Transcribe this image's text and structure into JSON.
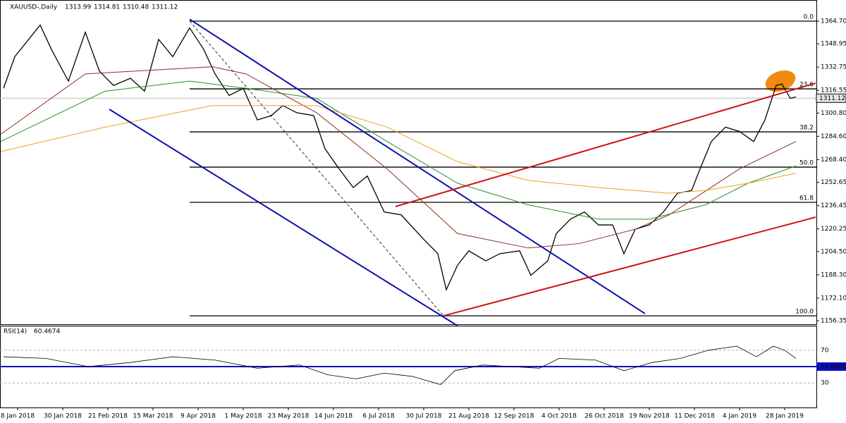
{
  "chart_data": {
    "type": "line",
    "title": "XAUUSD-,Daily",
    "ohlc": [
      1313.99,
      1314.81,
      1310.48,
      1311.12
    ],
    "x": [
      -5,
      -1,
      8,
      12,
      18,
      24,
      29,
      34,
      40,
      45,
      50,
      55,
      61,
      66,
      70,
      75,
      80,
      85,
      90,
      94,
      99,
      105,
      109,
      114,
      119,
      124,
      130,
      136,
      144,
      149,
      152,
      156,
      160,
      166,
      171,
      178,
      182,
      188,
      191,
      196,
      201,
      206,
      211,
      215,
      219,
      224,
      229,
      234,
      239,
      242,
      246,
      251,
      256,
      261,
      265,
      269,
      271,
      274,
      276
    ],
    "series": [
      {
        "color": "#000000",
        "values": [
          1318,
          1340,
          1362,
          1345,
          1323,
          1357,
          1330,
          1320,
          1325,
          1316,
          1352,
          1340,
          1360,
          1345,
          1328,
          1313,
          1318,
          1296,
          1299,
          1306,
          1301,
          1299,
          1276,
          1262,
          1249,
          1257,
          1232,
          1230,
          1213,
          1203,
          1178,
          1195,
          1205,
          1198,
          1203,
          1205,
          1188,
          1198,
          1217,
          1227,
          1232,
          1223,
          1223,
          1203,
          1220,
          1223,
          1232,
          1245,
          1247,
          1262,
          1281,
          1291,
          1288,
          1281,
          1296,
          1320,
          1321,
          1311,
          1312
        ]
      },
      {
        "color": "#8b2e1e",
        "x": [
          -6,
          24,
          69,
          81,
          106,
          131,
          156,
          181,
          199,
          219,
          231,
          256,
          276
        ],
        "values": [
          1286,
          1328,
          1333,
          1328,
          1301,
          1262,
          1217,
          1207,
          1210,
          1220,
          1230,
          1262,
          1281
        ]
      },
      {
        "color": "#2e8b2e",
        "x": [
          -6,
          31,
          61,
          81,
          106,
          131,
          156,
          181,
          206,
          224,
          244,
          259,
          276
        ],
        "values": [
          1281,
          1316,
          1323,
          1318,
          1311,
          1281,
          1252,
          1237,
          1227,
          1227,
          1237,
          1252,
          1264
        ]
      },
      {
        "color": "#f0a020",
        "x": [
          -6,
          31,
          69,
          106,
          131,
          156,
          181,
          206,
          231,
          244,
          259,
          276
        ],
        "values": [
          1274,
          1291,
          1306,
          1306,
          1291,
          1267,
          1254,
          1249,
          1245,
          1247,
          1252,
          1259
        ]
      }
    ],
    "xlim": [
      -6.25,
      283.25
    ],
    "xticks": [
      {
        "value": 0,
        "label": "8 Jan 2018"
      },
      {
        "value": 16,
        "label": "30 Jan 2018"
      },
      {
        "value": 32,
        "label": "21 Feb 2018"
      },
      {
        "value": 48,
        "label": "15 Mar 2018"
      },
      {
        "value": 64,
        "label": "9 Apr 2018"
      },
      {
        "value": 80,
        "label": "1 May 2018"
      },
      {
        "value": 96,
        "label": "23 May 2018"
      },
      {
        "value": 112,
        "label": "14 Jun 2018"
      },
      {
        "value": 128,
        "label": "6 Jul 2018"
      },
      {
        "value": 144,
        "label": "30 Jul 2018"
      },
      {
        "value": 160,
        "label": "21 Aug 2018"
      },
      {
        "value": 176,
        "label": "12 Sep 2018"
      },
      {
        "value": 192,
        "label": "4 Oct 2018"
      },
      {
        "value": 208,
        "label": "26 Oct 2018"
      },
      {
        "value": 224,
        "label": "19 Nov 2018"
      },
      {
        "value": 240,
        "label": "11 Dec 2018"
      },
      {
        "value": 256,
        "label": "4 Jan 2019"
      },
      {
        "value": 272,
        "label": "28 Jan 2019"
      }
    ],
    "ylim": [
      1153.9,
      1379.4
    ],
    "yticks": [
      {
        "value": 1364.7,
        "label": "1364.70"
      },
      1348.95,
      1332.75,
      1316.55,
      {
        "value": 1300.8,
        "label": "1300.80"
      },
      {
        "value": 1284.6,
        "label": "1284.60"
      },
      {
        "value": 1268.4,
        "label": "1268.40"
      },
      1252.65,
      1236.45,
      1220.25,
      {
        "value": 1204.5,
        "label": "1204.50"
      },
      {
        "value": 1188.3,
        "label": "1188.30"
      },
      {
        "value": 1172.1,
        "label": "1172.10"
      },
      1156.35
    ],
    "fibonacci": {
      "start": 61,
      "levels": [
        {
          "label": "0.0",
          "price": 1364.7
        },
        {
          "label": "23.6",
          "price": 1317.6
        },
        {
          "label": "38.2",
          "price": 1287.7
        },
        {
          "label": "50.0",
          "price": 1263.2
        },
        {
          "label": "61.8",
          "price": 1238.7
        },
        {
          "label": "100.0",
          "price": 1159.8
        }
      ]
    },
    "trendlines": [
      {
        "color": "#1010b0",
        "x": [
          61,
          222.5
        ],
        "y": [
          1366,
          1161.3
        ]
      },
      {
        "color": "#1010b0",
        "x": [
          32.5,
          156
        ],
        "y": [
          1303.4,
          1152.9
        ]
      },
      {
        "color": "#d01010",
        "x": [
          134,
          283
        ],
        "y": [
          1235.8,
          1321.6
        ]
      },
      {
        "color": "#d01010",
        "x": [
          151,
          283
        ],
        "y": [
          1159.8,
          1228.4
        ]
      },
      {
        "color": "#000000",
        "dashed": true,
        "x": [
          61,
          151
        ],
        "y": [
          1364.7,
          1159.8
        ]
      }
    ],
    "rsi": {
      "title": "RSI(14)",
      "last": 60.4674,
      "color": "#000000",
      "x": [
        -5,
        10,
        25,
        40,
        55,
        70,
        85,
        100,
        110,
        120,
        130,
        140,
        150,
        155,
        165,
        175,
        185,
        192,
        205,
        215,
        225,
        235,
        245,
        255,
        262,
        268,
        272,
        276
      ],
      "values": [
        62,
        60,
        50,
        55,
        62,
        58,
        48,
        52,
        40,
        35,
        42,
        38,
        28,
        45,
        52,
        50,
        48,
        60,
        58,
        45,
        55,
        60,
        70,
        75,
        62,
        75,
        70,
        60
      ],
      "ylim": [
        0,
        100
      ],
      "yticks": [
        70,
        {
          "value": 50,
          "label": "50.0000"
        },
        30
      ]
    }
  }
}
